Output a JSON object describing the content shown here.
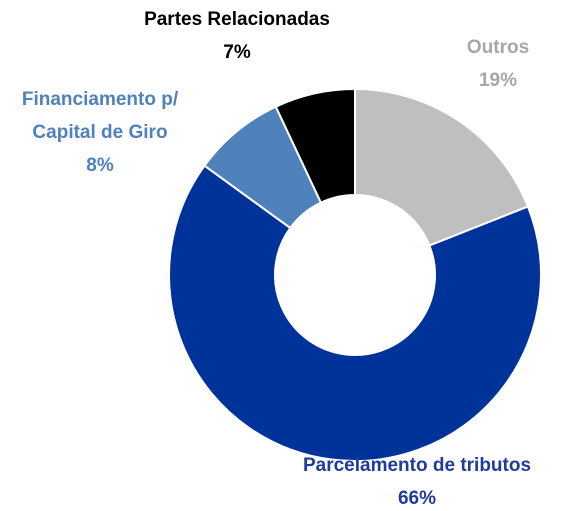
{
  "chart_data": {
    "type": "donut",
    "categories": [
      "Outros",
      "Parcelamento de tributos",
      "Financiamento p/ Capital de Giro",
      "Partes Relacionadas"
    ],
    "values": [
      19,
      66,
      8,
      7
    ],
    "value_labels": [
      "19%",
      "66%",
      "8%",
      "7%"
    ],
    "colors": [
      "#bfbfbf",
      "#003399",
      "#4f81bd",
      "#000000"
    ],
    "label_colors": [
      "#a6a6a6",
      "#1f3c9c",
      "#4f81bd",
      "#000000"
    ]
  }
}
